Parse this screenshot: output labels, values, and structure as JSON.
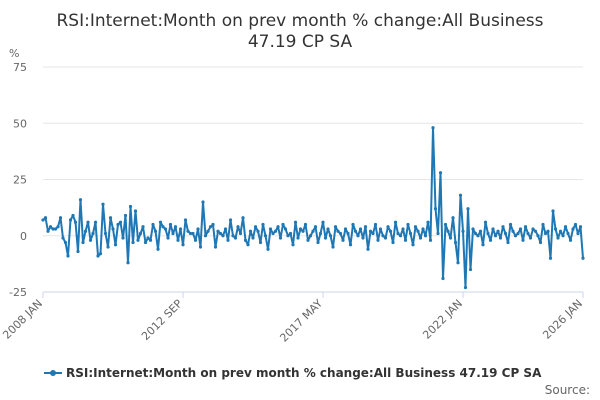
{
  "chart_data": {
    "type": "line",
    "title_line1": "RSI:Internet:Month on prev month % change:All Business",
    "title_line2": "47.19 CP SA",
    "ylabel": "%",
    "ylim": [
      -25,
      75
    ],
    "yticks": [
      "75",
      "50",
      "25",
      "0",
      "-25"
    ],
    "xlim": [
      "2008-01",
      "2026-01"
    ],
    "xticks": [
      "2008 JAN",
      "2012 SEP",
      "2017 MAY",
      "2022 JAN",
      "2026 JAN"
    ],
    "grid": "horizontal",
    "legend_position": "bottom",
    "credit": "Source:",
    "color": "#1f77b4",
    "series": [
      {
        "name": "RSI:Internet:Month on prev month % change:All Business 47.19 CP SA",
        "start": "2008-01",
        "values": [
          7,
          8,
          2,
          4,
          3,
          3,
          4,
          8,
          -1,
          -3,
          -9,
          7,
          9,
          6,
          -7,
          16,
          -3,
          2,
          6,
          -2,
          1,
          6,
          -9,
          -8,
          14,
          1,
          -5,
          8,
          3,
          -4,
          5,
          6,
          -1,
          9,
          -12,
          13,
          -3,
          11,
          -2,
          1,
          4,
          -3,
          -1,
          -2,
          5,
          2,
          -6,
          6,
          4,
          3,
          -1,
          5,
          1,
          4,
          -2,
          3,
          -4,
          7,
          2,
          1,
          1,
          -2,
          3,
          -5,
          15,
          0,
          2,
          4,
          5,
          -5,
          2,
          1,
          0,
          3,
          -2,
          7,
          0,
          -1,
          4,
          1,
          8,
          -2,
          -4,
          2,
          -1,
          4,
          2,
          -3,
          5,
          0,
          -6,
          3,
          1,
          2,
          4,
          -1,
          5,
          3,
          0,
          1,
          -4,
          6,
          -1,
          3,
          2,
          5,
          -2,
          0,
          2,
          4,
          -3,
          1,
          6,
          -1,
          3,
          0,
          -5,
          4,
          2,
          1,
          -2,
          3,
          1,
          -4,
          5,
          2,
          0,
          3,
          -1,
          4,
          -6,
          2,
          1,
          5,
          -2,
          3,
          0,
          -1,
          4,
          2,
          -3,
          6,
          1,
          0,
          3,
          -2,
          5,
          1,
          -4,
          4,
          2,
          -1,
          3,
          0,
          6,
          -2,
          48,
          12,
          1,
          28,
          -19,
          5,
          2,
          -1,
          8,
          -3,
          -12,
          18,
          2,
          -23,
          12,
          -15,
          3,
          1,
          0,
          2,
          -4,
          6,
          1,
          -2,
          3,
          0,
          2,
          -1,
          4,
          1,
          -3,
          5,
          2,
          0,
          1,
          3,
          -2,
          4,
          1,
          -1,
          3,
          2,
          0,
          -3,
          5,
          1,
          2,
          -10,
          11,
          3,
          -1,
          2,
          0,
          4,
          1,
          -2,
          3,
          5,
          1,
          4,
          -10
        ]
      }
    ]
  }
}
